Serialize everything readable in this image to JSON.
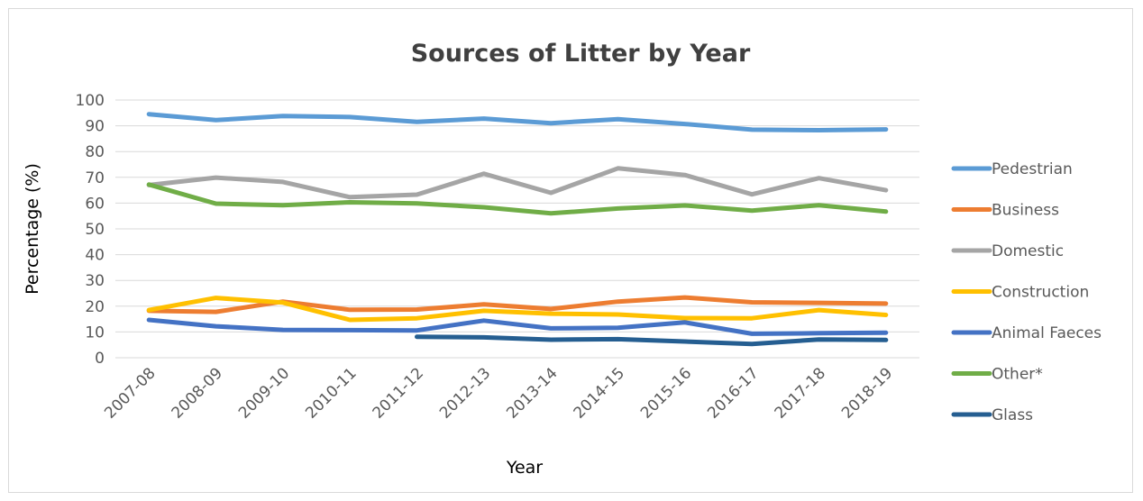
{
  "chart_data": {
    "type": "line",
    "title": "Sources of Litter by Year",
    "xlabel": "Year",
    "ylabel": "Percentage (%)",
    "ylim": [
      0,
      100
    ],
    "yticks": [
      0,
      10,
      20,
      30,
      40,
      50,
      60,
      70,
      80,
      90,
      100
    ],
    "grid": true,
    "legend_position": "right",
    "categories": [
      "2007-08",
      "2008-09",
      "2009-10",
      "2010-11",
      "2011-12",
      "2012-13",
      "2013-14",
      "2014-15",
      "2015-16",
      "2016-17",
      "2017-18",
      "2018-19"
    ],
    "series": [
      {
        "name": "Pedestrian",
        "color": "#5b9bd5",
        "values": [
          94.5,
          92.2,
          93.8,
          93.4,
          91.5,
          92.8,
          91.0,
          92.6,
          90.7,
          88.5,
          88.3,
          88.6
        ]
      },
      {
        "name": "Business",
        "color": "#ed7d31",
        "values": [
          18.2,
          17.8,
          21.8,
          18.6,
          18.7,
          20.7,
          18.9,
          21.8,
          23.4,
          21.5,
          21.3,
          21.0
        ]
      },
      {
        "name": "Domestic",
        "color": "#a5a5a5",
        "values": [
          67.0,
          69.9,
          68.2,
          62.3,
          63.3,
          71.4,
          64.0,
          73.5,
          70.9,
          63.4,
          69.7,
          65.0
        ]
      },
      {
        "name": "Construction",
        "color": "#ffc000",
        "values": [
          18.5,
          23.2,
          21.4,
          14.7,
          15.3,
          18.2,
          17.1,
          16.8,
          15.4,
          15.3,
          18.5,
          16.6
        ]
      },
      {
        "name": "Animal Faeces",
        "color": "#4472c4",
        "values": [
          14.7,
          12.2,
          10.8,
          10.7,
          10.6,
          14.4,
          11.4,
          11.6,
          13.7,
          9.3,
          9.5,
          9.7
        ]
      },
      {
        "name": "Other*",
        "color": "#70ad47",
        "values": [
          67.2,
          59.8,
          59.2,
          60.3,
          59.9,
          58.4,
          56.0,
          57.9,
          59.1,
          57.1,
          59.2,
          56.7
        ]
      },
      {
        "name": "Glass",
        "color": "#255e91",
        "values": [
          null,
          null,
          null,
          null,
          8.1,
          7.9,
          7.0,
          7.2,
          6.3,
          5.3,
          7.1,
          6.9
        ]
      }
    ]
  }
}
